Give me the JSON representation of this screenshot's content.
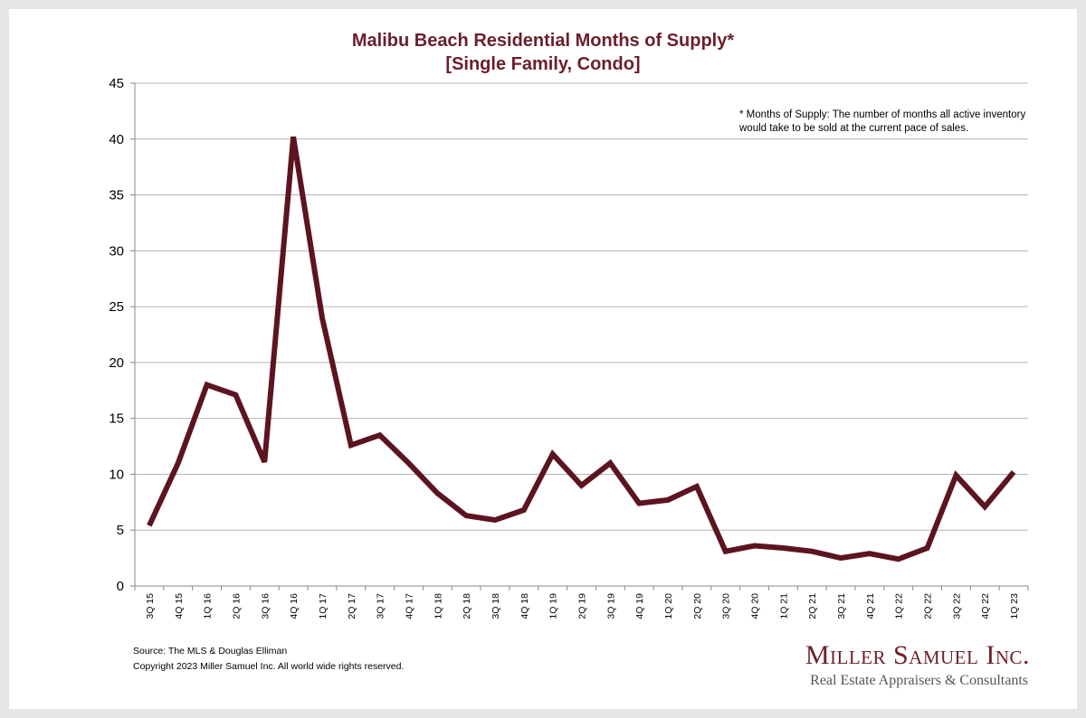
{
  "chart_data": {
    "type": "line",
    "title": "Malibu Beach Residential Months of Supply*",
    "subtitle": "[Single Family, Condo]",
    "xlabel": "",
    "ylabel": "",
    "ylim": [
      0,
      45
    ],
    "yticks": [
      0,
      5,
      10,
      15,
      20,
      25,
      30,
      35,
      40,
      45
    ],
    "grid": true,
    "line_color": "#5c1420",
    "categories": [
      "3Q 15",
      "4Q 15",
      "1Q 16",
      "2Q 16",
      "3Q 16",
      "4Q 16",
      "1Q 17",
      "2Q 17",
      "3Q 17",
      "4Q 17",
      "1Q 18",
      "2Q 18",
      "3Q 18",
      "4Q 18",
      "1Q 19",
      "2Q 19",
      "3Q 19",
      "4Q 19",
      "1Q 20",
      "2Q 20",
      "3Q 20",
      "4Q 20",
      "1Q 21",
      "2Q 21",
      "3Q 21",
      "4Q 21",
      "1Q 22",
      "2Q 22",
      "3Q 22",
      "4Q 22",
      "1Q 23"
    ],
    "series": [
      {
        "values": [
          5.4,
          11.0,
          18.0,
          17.1,
          11.1,
          40.2,
          24.0,
          12.6,
          13.5,
          11.0,
          8.3,
          6.3,
          5.9,
          6.8,
          11.8,
          9.0,
          11.0,
          7.4,
          7.7,
          8.9,
          3.1,
          3.6,
          3.4,
          3.1,
          2.5,
          2.9,
          2.4,
          3.4,
          9.9,
          7.1,
          10.2
        ]
      }
    ],
    "annotation": "* Months of Supply: The number of months all active inventory would take to be sold at the current pace of sales."
  },
  "footer": {
    "source": "Source: The MLS & Douglas Elliman",
    "copyright": "Copyright 2023 Miller Samuel Inc.  All world wide rights reserved."
  },
  "logo": {
    "name": "Miller Samuel Inc.",
    "tagline": "Real Estate Appraisers & Consultants"
  }
}
